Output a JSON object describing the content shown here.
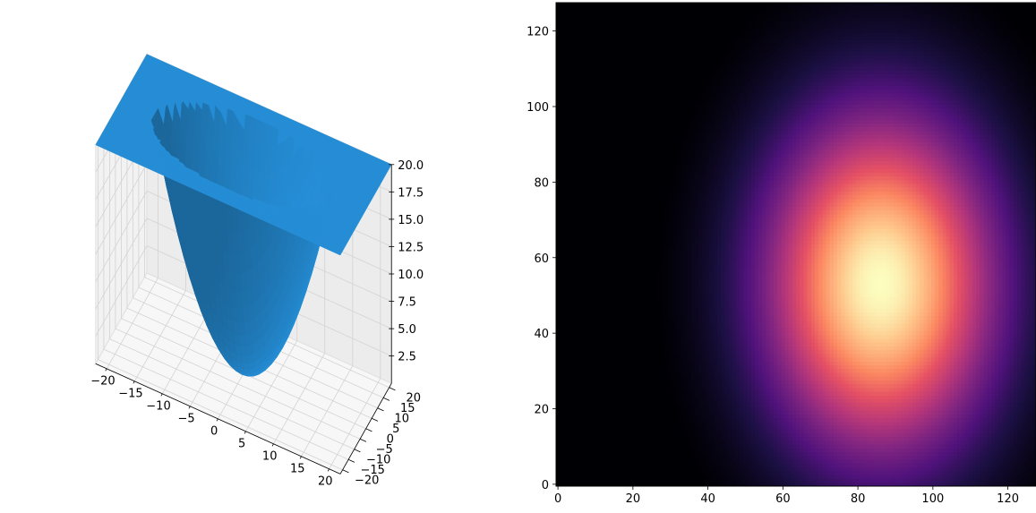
{
  "chart_data": [
    {
      "type": "surface3d",
      "title": "",
      "color": "#1f77b4",
      "pane_color": "#f2f2f2",
      "grid": true,
      "x": {
        "label": "",
        "range": [
          -22,
          22
        ],
        "ticks": [
          -20,
          -15,
          -10,
          -5,
          0,
          5,
          10,
          15,
          20
        ],
        "tick_labels": [
          "−20",
          "−15",
          "−10",
          "−5",
          "0",
          "5",
          "10",
          "15",
          "20"
        ]
      },
      "y": {
        "label": "",
        "range": [
          -22,
          22
        ],
        "ticks": [
          -20,
          -15,
          -10,
          -5,
          0,
          5,
          10,
          15,
          20
        ],
        "tick_labels": [
          "−20",
          "−15",
          "−10",
          "−5",
          "0",
          "5",
          "10",
          "15",
          "20"
        ]
      },
      "z": {
        "label": "",
        "range": [
          0,
          20
        ],
        "ticks": [
          2.5,
          5.0,
          7.5,
          10.0,
          12.5,
          15.0,
          17.5,
          20.0
        ],
        "tick_labels": [
          "2.5",
          "5.0",
          "7.5",
          "10.0",
          "12.5",
          "15.0",
          "17.5",
          "20.0"
        ]
      },
      "surface": {
        "form": "paraboloid",
        "center": [
          0,
          0
        ],
        "curvature_x": 0.08,
        "curvature_y": 0.08,
        "cap": 20,
        "grid_steps": 44
      }
    },
    {
      "type": "heatmap",
      "title": "",
      "colormap": "magma",
      "grid": false,
      "x": {
        "label": "",
        "range": [
          0,
          127
        ],
        "ticks": [
          0,
          20,
          40,
          60,
          80,
          100,
          120
        ],
        "tick_labels": [
          "0",
          "20",
          "40",
          "60",
          "80",
          "100",
          "120"
        ]
      },
      "y": {
        "label": "",
        "range": [
          0,
          127
        ],
        "ticks": [
          0,
          20,
          40,
          60,
          80,
          100,
          120
        ],
        "tick_labels": [
          "0",
          "20",
          "40",
          "60",
          "80",
          "100",
          "120"
        ]
      },
      "resolution": [
        128,
        128
      ],
      "field": {
        "form": "elliptical-gaussian",
        "center": [
          86,
          53
        ],
        "sigma_x": 22,
        "sigma_y": 32,
        "zero_outside_radius": 2.7
      }
    }
  ]
}
